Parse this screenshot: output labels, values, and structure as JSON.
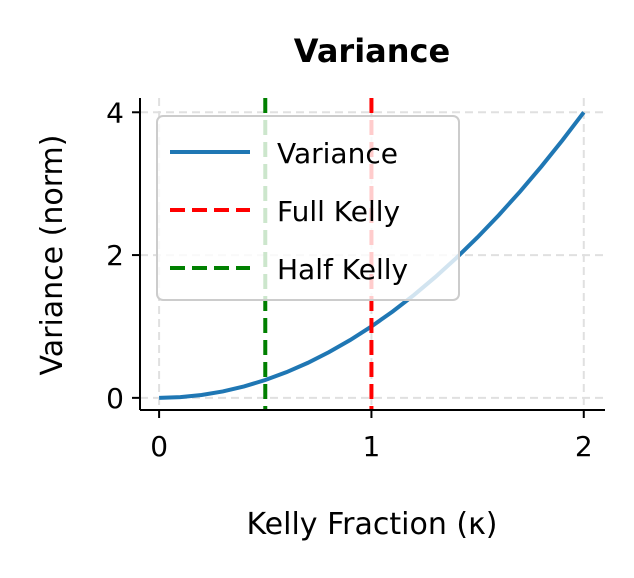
{
  "chart_data": {
    "type": "line",
    "title": "Variance",
    "xlabel": "Kelly Fraction (κ)",
    "ylabel": "Variance (norm)",
    "xlim": [
      -0.09,
      2.1
    ],
    "ylim": [
      -0.17,
      4.2
    ],
    "xticks": [
      0,
      1,
      2
    ],
    "yticks": [
      0,
      2,
      4
    ],
    "grid": true,
    "legend_placement": "upper-left",
    "series": [
      {
        "name": "Variance",
        "style": "solid",
        "color": "#1f77b4",
        "x": [
          0,
          0.1,
          0.2,
          0.3,
          0.4,
          0.5,
          0.6,
          0.7,
          0.8,
          0.9,
          1.0,
          1.1,
          1.2,
          1.3,
          1.4,
          1.5,
          1.6,
          1.7,
          1.8,
          1.9,
          2.0
        ],
        "y": [
          0,
          0.01,
          0.04,
          0.09,
          0.16,
          0.25,
          0.36,
          0.49,
          0.64,
          0.81,
          1.0,
          1.21,
          1.44,
          1.69,
          1.96,
          2.25,
          2.56,
          2.89,
          3.24,
          3.61,
          4.0
        ]
      },
      {
        "name": "Full Kelly",
        "style": "dashed-vertical",
        "color": "#ff0000",
        "x_value": 1.0
      },
      {
        "name": "Half Kelly",
        "style": "dashed-vertical",
        "color": "#008000",
        "x_value": 0.5
      }
    ]
  }
}
